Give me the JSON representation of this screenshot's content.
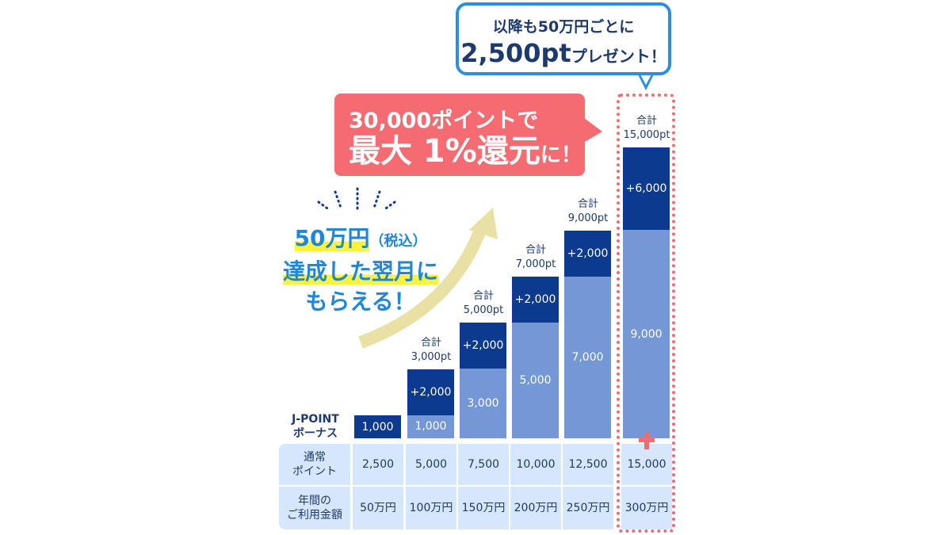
{
  "blue_callout": {
    "line1": "以降も50万円ごとに",
    "amount": "2,500pt",
    "suffix": "プレゼント！"
  },
  "red_callout": {
    "line1": "30,000ポイントで",
    "line2": "最大 1%還元",
    "suffix": "に！"
  },
  "message": {
    "line1a": "50万円",
    "line1b": "（税込）",
    "line2": "達成した翌月に",
    "line3": "もらえる！"
  },
  "row_labels": {
    "bonus": "J-POINT\nボーナス",
    "normal": "通常\nポイント",
    "spend": "年間の\nご利用金額"
  },
  "colors": {
    "dark": "#0c3a8e",
    "light": "#7497d6",
    "accent": "#f46b72"
  },
  "chart_data": {
    "type": "bar",
    "categories": [
      "50万円",
      "100万円",
      "150万円",
      "200万円",
      "250万円",
      "300万円"
    ],
    "series": [
      {
        "name": "base",
        "values": [
          null,
          1000,
          3000,
          5000,
          7000,
          9000
        ],
        "labels": [
          "",
          "1,000",
          "3,000",
          "5,000",
          "7,000",
          "9,000"
        ]
      },
      {
        "name": "bonus_added",
        "values": [
          1000,
          2000,
          2000,
          2000,
          2000,
          6000
        ],
        "labels": [
          "1,000",
          "+2,000",
          "+2,000",
          "+2,000",
          "+2,000",
          "+6,000"
        ]
      }
    ],
    "totals": [
      "",
      "合計\n3,000pt",
      "合計\n5,000pt",
      "合計\n7,000pt",
      "合計\n9,000pt",
      "合計\n15,000pt"
    ],
    "normal_points": [
      "2,500",
      "5,000",
      "7,500",
      "10,000",
      "12,500",
      "15,000"
    ]
  }
}
